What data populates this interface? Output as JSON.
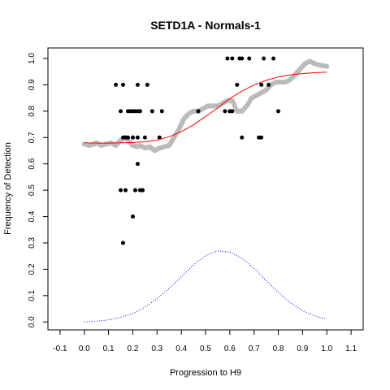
{
  "chart_data": {
    "type": "scatter",
    "title": "SETD1A - Normals-1",
    "xlabel": "Progression to H9",
    "ylabel": "Frequency of Detection",
    "xlim": [
      -0.15,
      1.15
    ],
    "ylim": [
      -0.03,
      1.04
    ],
    "x_ticks": [
      -0.1,
      0.0,
      0.1,
      0.2,
      0.3,
      0.4,
      0.5,
      0.6,
      0.7,
      0.8,
      0.9,
      1.0,
      1.1
    ],
    "x_tick_labels": [
      "-0.1",
      "0.0",
      "0.1",
      "0.2",
      "0.3",
      "0.4",
      "0.5",
      "0.6",
      "0.7",
      "0.8",
      "0.9",
      "1.0",
      "1.1"
    ],
    "y_ticks": [
      0.0,
      0.1,
      0.2,
      0.3,
      0.4,
      0.5,
      0.6,
      0.7,
      0.8,
      0.9,
      1.0
    ],
    "y_tick_labels": [
      "0.0",
      "0.1",
      "0.2",
      "0.3",
      "0.4",
      "0.5",
      "0.6",
      "0.7",
      "0.8",
      "0.9",
      "1.0"
    ],
    "grid": false,
    "points": {
      "color": "#000000",
      "x": [
        0.16,
        0.2,
        0.21,
        0.22,
        0.13,
        0.15,
        0.26,
        0.18,
        0.2,
        0.21,
        0.22,
        0.23,
        0.15,
        0.19,
        0.24,
        0.28,
        0.32,
        0.17,
        0.18,
        0.2,
        0.22,
        0.25,
        0.31,
        0.22,
        0.16,
        0.17,
        0.21,
        0.23,
        0.24,
        0.2,
        0.16,
        0.59,
        0.61,
        0.64,
        0.65,
        0.68,
        0.74,
        0.78,
        0.63,
        0.58,
        0.6,
        0.61,
        0.73,
        0.76,
        0.8,
        0.65,
        0.72,
        0.73,
        0.47
      ],
      "y": [
        0.3,
        0.4,
        0.5,
        0.6,
        0.9,
        0.8,
        0.9,
        0.8,
        0.8,
        0.8,
        0.8,
        0.8,
        0.5,
        0.8,
        0.5,
        0.8,
        0.8,
        0.7,
        0.7,
        0.7,
        0.7,
        0.7,
        0.7,
        0.9,
        0.9,
        0.5,
        0.5,
        0.5,
        0.5,
        0.7,
        0.7,
        1.0,
        1.0,
        1.0,
        1.0,
        1.0,
        1.0,
        1.0,
        0.9,
        0.8,
        0.8,
        0.8,
        0.9,
        0.9,
        0.8,
        0.7,
        0.7,
        0.7,
        0.8
      ]
    },
    "grey_curve": {
      "color": "#bbbbbb",
      "x": [
        0.0,
        0.02,
        0.04,
        0.05,
        0.07,
        0.09,
        0.11,
        0.13,
        0.15,
        0.17,
        0.19,
        0.2,
        0.22,
        0.23,
        0.25,
        0.27,
        0.29,
        0.31,
        0.33,
        0.35,
        0.37,
        0.39,
        0.4,
        0.41,
        0.43,
        0.45,
        0.47,
        0.49,
        0.51,
        0.53,
        0.55,
        0.57,
        0.59,
        0.61,
        0.63,
        0.65,
        0.67,
        0.69,
        0.71,
        0.73,
        0.75,
        0.77,
        0.79,
        0.81,
        0.83,
        0.85,
        0.87,
        0.89,
        0.91,
        0.93,
        0.95,
        0.97,
        1.0
      ],
      "y": [
        0.675,
        0.67,
        0.675,
        0.68,
        0.67,
        0.675,
        0.68,
        0.67,
        0.69,
        0.7,
        0.68,
        0.67,
        0.665,
        0.67,
        0.66,
        0.665,
        0.65,
        0.66,
        0.665,
        0.67,
        0.7,
        0.73,
        0.75,
        0.77,
        0.79,
        0.8,
        0.8,
        0.81,
        0.82,
        0.82,
        0.82,
        0.83,
        0.84,
        0.84,
        0.8,
        0.8,
        0.82,
        0.85,
        0.86,
        0.87,
        0.88,
        0.9,
        0.91,
        0.91,
        0.91,
        0.92,
        0.94,
        0.96,
        0.98,
        0.99,
        0.98,
        0.975,
        0.97
      ]
    },
    "red_curve": {
      "color": "#ff0000",
      "x": [
        0.0,
        0.05,
        0.1,
        0.15,
        0.2,
        0.25,
        0.3,
        0.35,
        0.4,
        0.45,
        0.5,
        0.55,
        0.6,
        0.65,
        0.7,
        0.75,
        0.8,
        0.85,
        0.9,
        0.95,
        1.0
      ],
      "y": [
        0.68,
        0.679,
        0.679,
        0.68,
        0.681,
        0.684,
        0.69,
        0.703,
        0.722,
        0.748,
        0.78,
        0.812,
        0.848,
        0.876,
        0.9,
        0.917,
        0.93,
        0.938,
        0.943,
        0.946,
        0.948
      ]
    },
    "blue_curve": {
      "color": "#0000ff",
      "style": "dotted",
      "x": [
        0.0,
        0.05,
        0.1,
        0.15,
        0.2,
        0.25,
        0.3,
        0.35,
        0.4,
        0.45,
        0.5,
        0.55,
        0.6,
        0.65,
        0.7,
        0.75,
        0.8,
        0.85,
        0.9,
        0.95,
        1.0
      ],
      "y": [
        0.0,
        0.003,
        0.008,
        0.017,
        0.032,
        0.056,
        0.088,
        0.128,
        0.172,
        0.216,
        0.252,
        0.27,
        0.265,
        0.242,
        0.204,
        0.157,
        0.112,
        0.073,
        0.043,
        0.023,
        0.011
      ]
    }
  }
}
